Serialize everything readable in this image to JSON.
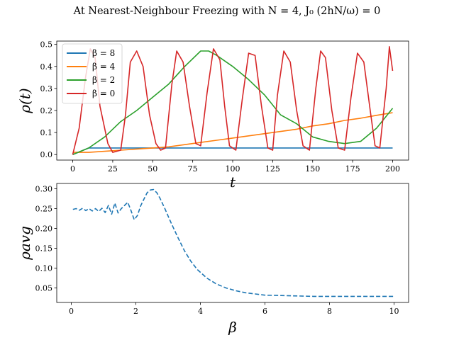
{
  "figure": {
    "title": "At Nearest-Neighbour Freezing with N = 4, J₀ (2hN/ω) = 0"
  },
  "chart_data": [
    {
      "type": "line",
      "xlabel": "t",
      "ylabel": "ρ(t)",
      "xlim": [
        -10,
        210
      ],
      "ylim": [
        -0.025,
        0.515
      ],
      "xticks": [
        0,
        25,
        50,
        75,
        100,
        125,
        150,
        175,
        200
      ],
      "yticks": [
        0.0,
        0.1,
        0.2,
        0.3,
        0.4,
        0.5
      ],
      "legend": "upper-left",
      "grid": false,
      "series": [
        {
          "name": "β = 8",
          "color": "#1f77b4",
          "x": [
            0,
            10,
            20,
            30,
            40,
            50,
            60,
            70,
            80,
            90,
            100,
            110,
            120,
            130,
            140,
            150,
            160,
            170,
            180,
            190,
            200
          ],
          "y": [
            0.0,
            0.03,
            0.03,
            0.03,
            0.03,
            0.03,
            0.03,
            0.03,
            0.03,
            0.03,
            0.03,
            0.03,
            0.03,
            0.03,
            0.03,
            0.03,
            0.03,
            0.03,
            0.03,
            0.03,
            0.03
          ]
        },
        {
          "name": "β = 4",
          "color": "#ff7f0e",
          "x": [
            0,
            10,
            20,
            30,
            40,
            50,
            60,
            70,
            80,
            90,
            100,
            110,
            120,
            130,
            140,
            150,
            160,
            170,
            180,
            190,
            200
          ],
          "y": [
            0.01,
            0.01,
            0.015,
            0.02,
            0.025,
            0.03,
            0.035,
            0.045,
            0.055,
            0.065,
            0.075,
            0.085,
            0.095,
            0.105,
            0.115,
            0.13,
            0.14,
            0.155,
            0.165,
            0.178,
            0.19
          ]
        },
        {
          "name": "β = 2",
          "color": "#2ca02c",
          "x": [
            0,
            10,
            20,
            30,
            40,
            50,
            60,
            70,
            80,
            85,
            90,
            100,
            110,
            120,
            130,
            140,
            150,
            160,
            170,
            180,
            190,
            200
          ],
          "y": [
            0.0,
            0.03,
            0.08,
            0.15,
            0.2,
            0.26,
            0.32,
            0.4,
            0.47,
            0.47,
            0.45,
            0.4,
            0.34,
            0.27,
            0.18,
            0.14,
            0.08,
            0.06,
            0.05,
            0.06,
            0.12,
            0.21
          ]
        },
        {
          "name": "β = 0",
          "color": "#d62728",
          "x": [
            0,
            4,
            8,
            11,
            14,
            17,
            22,
            25,
            30,
            33,
            36,
            40,
            44,
            48,
            52,
            55,
            58,
            62,
            65,
            69,
            73,
            77,
            80,
            84,
            88,
            92,
            95,
            98,
            102,
            106,
            110,
            114,
            118,
            122,
            125,
            128,
            132,
            136,
            140,
            144,
            148,
            152,
            155,
            158,
            162,
            166,
            170,
            174,
            178,
            182,
            186,
            189,
            192,
            196,
            198,
            200
          ],
          "y": [
            0.0,
            0.12,
            0.35,
            0.48,
            0.44,
            0.22,
            0.05,
            0.01,
            0.02,
            0.18,
            0.42,
            0.47,
            0.4,
            0.18,
            0.05,
            0.02,
            0.03,
            0.32,
            0.47,
            0.42,
            0.22,
            0.05,
            0.04,
            0.28,
            0.48,
            0.43,
            0.22,
            0.04,
            0.02,
            0.25,
            0.46,
            0.45,
            0.22,
            0.03,
            0.02,
            0.27,
            0.47,
            0.42,
            0.2,
            0.04,
            0.02,
            0.3,
            0.47,
            0.44,
            0.2,
            0.03,
            0.02,
            0.26,
            0.46,
            0.42,
            0.2,
            0.04,
            0.03,
            0.3,
            0.49,
            0.38
          ]
        }
      ]
    },
    {
      "type": "line",
      "xlabel": "β",
      "ylabel": "ρavg",
      "xlim": [
        -0.45,
        10.45
      ],
      "ylim": [
        0.0136,
        0.3134
      ],
      "xticks": [
        0,
        2,
        4,
        6,
        8,
        10
      ],
      "yticks": [
        0.05,
        0.1,
        0.15,
        0.2,
        0.25,
        0.3
      ],
      "grid": false,
      "series": [
        {
          "color": "#1f77b4",
          "style": "dashed",
          "x": [
            0.05,
            0.15,
            0.25,
            0.35,
            0.45,
            0.55,
            0.65,
            0.75,
            0.85,
            0.95,
            1.05,
            1.15,
            1.25,
            1.35,
            1.45,
            1.55,
            1.65,
            1.75,
            1.85,
            1.95,
            2.05,
            2.15,
            2.25,
            2.35,
            2.45,
            2.55,
            2.65,
            2.75,
            2.9,
            3.1,
            3.3,
            3.5,
            3.7,
            3.9,
            4.2,
            4.5,
            4.8,
            5.1,
            5.4,
            5.7,
            6.0,
            6.5,
            7.0,
            7.5,
            8.0,
            8.5,
            9.0,
            9.5,
            10.0
          ],
          "y": [
            0.248,
            0.25,
            0.246,
            0.251,
            0.245,
            0.25,
            0.244,
            0.25,
            0.243,
            0.251,
            0.24,
            0.258,
            0.236,
            0.264,
            0.239,
            0.25,
            0.258,
            0.266,
            0.245,
            0.222,
            0.233,
            0.257,
            0.274,
            0.29,
            0.297,
            0.298,
            0.29,
            0.276,
            0.25,
            0.213,
            0.178,
            0.145,
            0.118,
            0.097,
            0.075,
            0.06,
            0.05,
            0.043,
            0.038,
            0.035,
            0.032,
            0.031,
            0.03,
            0.029,
            0.029,
            0.029,
            0.029,
            0.029,
            0.029
          ]
        }
      ]
    }
  ]
}
